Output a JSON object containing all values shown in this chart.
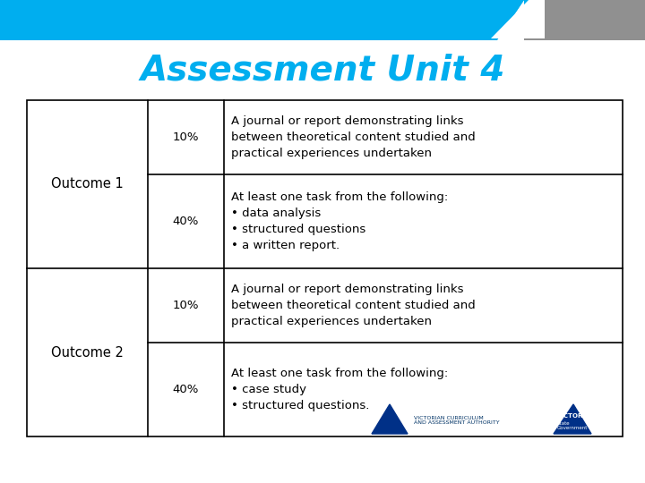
{
  "title": "Assessment Unit 4",
  "title_color": "#00AEEF",
  "title_fontsize": 28,
  "title_fontstyle": "italic",
  "title_fontweight": "bold",
  "background_color": "#FFFFFF",
  "header_bar_color": "#00AEEF",
  "corner_bar_color": "#909090",
  "table": {
    "rows": [
      {
        "outcome": "Outcome 1",
        "percent": "10%",
        "description": "A journal or report demonstrating links\nbetween theoretical content studied and\npractical experiences undertaken"
      },
      {
        "outcome": "",
        "percent": "40%",
        "description": "At least one task from the following:\n• data analysis\n• structured questions\n• a written report."
      },
      {
        "outcome": "Outcome 2",
        "percent": "10%",
        "description": "A journal or report demonstrating links\nbetween theoretical content studied and\npractical experiences undertaken"
      },
      {
        "outcome": "",
        "percent": "40%",
        "description": "At least one task from the following:\n• case study\n• structured questions."
      }
    ]
  },
  "border_color": "#000000",
  "border_lw": 1.2,
  "cell_fontsize": 9.5,
  "outcome_fontsize": 10.5
}
